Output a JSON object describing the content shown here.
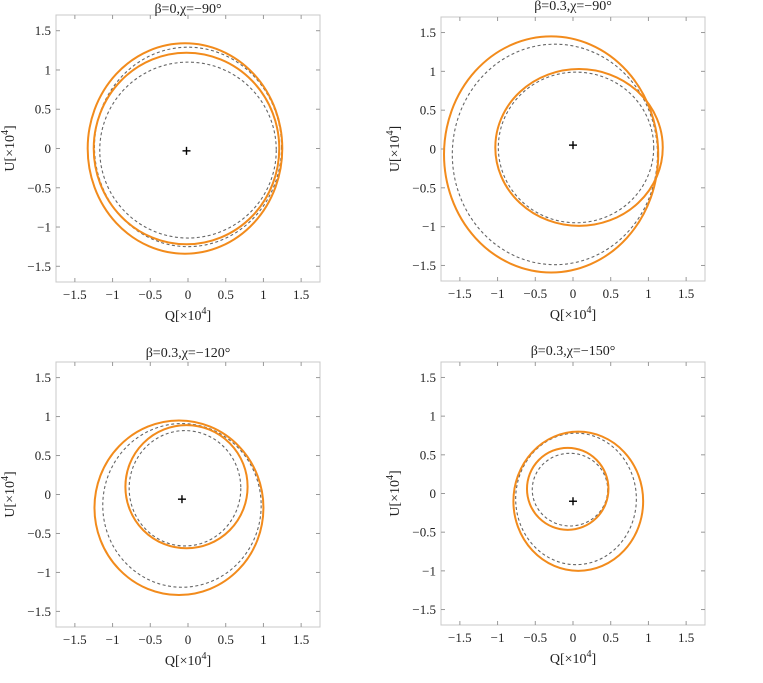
{
  "chart_data": [
    {
      "type": "line",
      "title": "β=0,χ=−90°",
      "xlabel_main": "Q[×10",
      "xlabel_sup": "4",
      "xlabel_end": "]",
      "ylabel_main": "U[×10",
      "ylabel_sup": "4",
      "ylabel_end": "]",
      "xlim": [
        -1.75,
        1.75
      ],
      "ylim": [
        -1.7,
        1.7
      ],
      "xticks": [
        -1.5,
        -1,
        -0.5,
        0,
        0.5,
        1,
        1.5
      ],
      "xticklabels": [
        "−1.5",
        "−1",
        "−0.5",
        "0",
        "0.5",
        "1",
        "1.5"
      ],
      "yticks": [
        -1.5,
        -1,
        -0.5,
        0,
        0.5,
        1,
        1.5
      ],
      "yticklabels": [
        "−1.5",
        "−1",
        "−0.5",
        "0",
        "0.5",
        "1",
        "1.5"
      ],
      "marker": {
        "x": -0.02,
        "y": -0.03,
        "symbol": "+"
      },
      "series": [
        {
          "name": "solid-outer",
          "style": "solid",
          "cx": -0.04,
          "cy": 0.0,
          "rx": 1.29,
          "ry": 1.34
        },
        {
          "name": "solid-inner",
          "style": "solid",
          "cx": -0.02,
          "cy": 0.0,
          "rx": 1.23,
          "ry": 1.22
        },
        {
          "name": "dashed-outer",
          "style": "dashed",
          "cx": 0.0,
          "cy": 0.02,
          "rx": 1.24,
          "ry": 1.27
        },
        {
          "name": "dashed-inner",
          "style": "dashed",
          "cx": 0.0,
          "cy": -0.02,
          "rx": 1.17,
          "ry": 1.12
        }
      ]
    },
    {
      "type": "line",
      "title": "β=0.3,χ=−90°",
      "xlabel_main": "Q[×10",
      "xlabel_sup": "4",
      "xlabel_end": "]",
      "ylabel_main": "U[×10",
      "ylabel_sup": "4",
      "ylabel_end": "]",
      "xlim": [
        -1.75,
        1.75
      ],
      "ylim": [
        -1.7,
        1.7
      ],
      "xticks": [
        -1.5,
        -1,
        -0.5,
        0,
        0.5,
        1,
        1.5
      ],
      "xticklabels": [
        "−1.5",
        "−1",
        "−0.5",
        "0",
        "0.5",
        "1",
        "1.5"
      ],
      "yticks": [
        -1.5,
        -1,
        -0.5,
        0,
        0.5,
        1,
        1.5
      ],
      "yticklabels": [
        "−1.5",
        "−1",
        "−0.5",
        "0",
        "0.5",
        "1",
        "1.5"
      ],
      "marker": {
        "x": 0.0,
        "y": 0.05,
        "symbol": "+"
      },
      "series": [
        {
          "name": "solid-outer",
          "style": "solid",
          "cx": -0.29,
          "cy": -0.07,
          "rx": 1.42,
          "ry": 1.52
        },
        {
          "name": "solid-inner",
          "style": "solid",
          "cx": 0.08,
          "cy": 0.02,
          "rx": 1.11,
          "ry": 1.01
        },
        {
          "name": "dashed-outer",
          "style": "dashed",
          "cx": -0.24,
          "cy": -0.07,
          "rx": 1.36,
          "ry": 1.42
        },
        {
          "name": "dashed-inner",
          "style": "dashed",
          "cx": 0.04,
          "cy": 0.02,
          "rx": 1.03,
          "ry": 0.97
        }
      ]
    },
    {
      "type": "line",
      "title": "β=0.3,χ=−120°",
      "xlabel_main": "Q[×10",
      "xlabel_sup": "4",
      "xlabel_end": "]",
      "ylabel_main": "U[×10",
      "ylabel_sup": "4",
      "ylabel_end": "]",
      "xlim": [
        -1.75,
        1.75
      ],
      "ylim": [
        -1.7,
        1.7
      ],
      "xticks": [
        -1.5,
        -1,
        -0.5,
        0,
        0.5,
        1,
        1.5
      ],
      "xticklabels": [
        "−1.5",
        "−1",
        "−0.5",
        "0",
        "0.5",
        "1",
        "1.5"
      ],
      "yticks": [
        -1.5,
        -1,
        -0.5,
        0,
        0.5,
        1,
        1.5
      ],
      "yticklabels": [
        "−1.5",
        "−1",
        "−0.5",
        "0",
        "0.5",
        "1",
        "1.5"
      ],
      "marker": {
        "x": -0.08,
        "y": -0.06,
        "symbol": "+"
      },
      "series": [
        {
          "name": "solid-outer",
          "style": "solid",
          "cx": -0.12,
          "cy": -0.17,
          "rx": 1.12,
          "ry": 1.12
        },
        {
          "name": "solid-inner",
          "style": "solid",
          "cx": -0.02,
          "cy": 0.1,
          "rx": 0.81,
          "ry": 0.79
        },
        {
          "name": "dashed-outer",
          "style": "dashed",
          "cx": -0.08,
          "cy": -0.14,
          "rx": 1.05,
          "ry": 1.05
        },
        {
          "name": "dashed-inner",
          "style": "dashed",
          "cx": -0.04,
          "cy": 0.08,
          "rx": 0.74,
          "ry": 0.74
        }
      ]
    },
    {
      "type": "line",
      "title": "β=0.3,χ=−150°",
      "xlabel_main": "Q[×10",
      "xlabel_sup": "4",
      "xlabel_end": "]",
      "ylabel_main": "U[×10",
      "ylabel_sup": "4",
      "ylabel_end": "]",
      "xlim": [
        -1.75,
        1.75
      ],
      "ylim": [
        -1.7,
        1.7
      ],
      "xticks": [
        -1.5,
        -1,
        -0.5,
        0,
        0.5,
        1,
        1.5
      ],
      "xticklabels": [
        "−1.5",
        "−1",
        "−0.5",
        "0",
        "0.5",
        "1",
        "1.5"
      ],
      "yticks": [
        -1.5,
        -1,
        -0.5,
        0,
        0.5,
        1,
        1.5
      ],
      "yticklabels": [
        "−1.5",
        "−1",
        "−0.5",
        "0",
        "0.5",
        "1",
        "1.5"
      ],
      "marker": {
        "x": 0.0,
        "y": -0.1,
        "symbol": "+"
      },
      "series": [
        {
          "name": "solid-outer",
          "style": "solid",
          "cx": 0.07,
          "cy": -0.1,
          "rx": 0.86,
          "ry": 0.9
        },
        {
          "name": "solid-inner",
          "style": "solid",
          "cx": -0.07,
          "cy": 0.06,
          "rx": 0.54,
          "ry": 0.53
        },
        {
          "name": "dashed-outer",
          "style": "dashed",
          "cx": 0.04,
          "cy": -0.07,
          "rx": 0.8,
          "ry": 0.85
        },
        {
          "name": "dashed-inner",
          "style": "dashed",
          "cx": -0.04,
          "cy": 0.05,
          "rx": 0.5,
          "ry": 0.47
        }
      ]
    }
  ],
  "colors": {
    "solid_curve": "#f28b1c",
    "dashed_curve": "#666666",
    "frame": "#c8c8c8",
    "tick": "#999999",
    "marker": "#000000"
  }
}
